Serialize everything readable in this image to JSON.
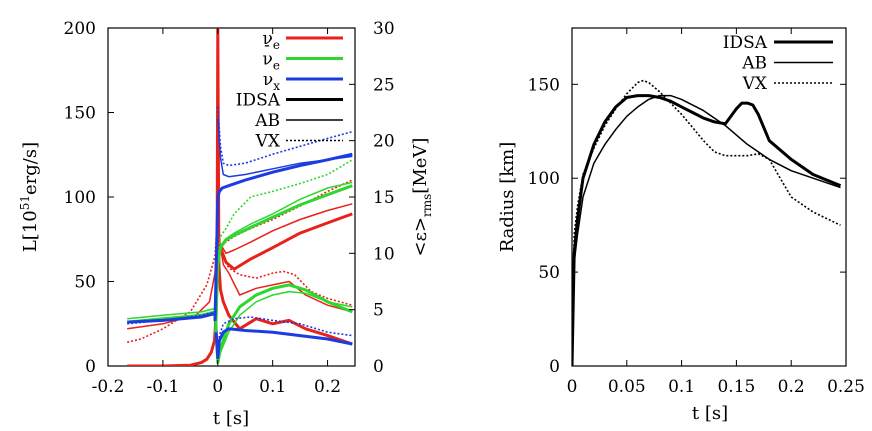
{
  "chart_data": [
    {
      "type": "line",
      "title": "",
      "xlabel": "t [s]",
      "ylabel": "L[10^51 erg/s]",
      "ylabel_display": [
        "L[10",
        "51",
        "erg/s]"
      ],
      "y2label": "<ε>_rms [MeV]",
      "y2label_display": [
        "<ε>",
        "rms",
        "[MeV]"
      ],
      "xlim": [
        -0.2,
        0.25
      ],
      "ylim": [
        0,
        200
      ],
      "y2lim": [
        0,
        30
      ],
      "xticks": [
        -0.2,
        -0.1,
        0,
        0.1,
        0.2
      ],
      "xtick_labels": [
        "-0.2",
        "-0.1",
        "0",
        "0.1",
        "0.2"
      ],
      "yticks": [
        0,
        50,
        100,
        150,
        200
      ],
      "ytick_labels": [
        "0",
        "50",
        "100",
        "150",
        "200"
      ],
      "y2ticks": [
        0,
        5,
        10,
        15,
        20,
        25,
        30
      ],
      "y2tick_labels": [
        "0",
        "5",
        "10",
        "15",
        "20",
        "25",
        "30"
      ],
      "legend_position": "top-right",
      "legend": [
        {
          "label": "ν",
          "sub": "e",
          "accent": "",
          "color": "#e8211a",
          "style": "thick"
        },
        {
          "label": "ν",
          "sub": "e",
          "accent": "-",
          "color": "#2ed62e",
          "style": "thick"
        },
        {
          "label": "ν",
          "sub": "x",
          "accent": "",
          "color": "#1b3ce0",
          "style": "thick"
        },
        {
          "label": "IDSA",
          "color": "#000000",
          "style": "thick"
        },
        {
          "label": "AB",
          "color": "#000000",
          "style": "thin"
        },
        {
          "label": "VX",
          "color": "#000000",
          "style": "dotted"
        }
      ],
      "series": [
        {
          "name": "ν_e luminosity IDSA",
          "axis": "left",
          "color": "#e8211a",
          "style": "thick",
          "x": [
            -0.165,
            -0.1,
            -0.05,
            -0.03,
            -0.02,
            -0.012,
            -0.006,
            -0.003,
            -0.001,
            0.0,
            0.002,
            0.005,
            0.01,
            0.02,
            0.04,
            0.07,
            0.1,
            0.13,
            0.16,
            0.2,
            0.245
          ],
          "y": [
            0,
            0,
            0.5,
            2,
            4,
            8,
            15,
            30,
            80,
            200,
            60,
            45,
            38,
            30,
            22,
            28,
            25,
            27,
            22,
            18,
            13
          ]
        },
        {
          "name": "ν_e luminosity AB",
          "axis": "left",
          "color": "#e8211a",
          "style": "thin",
          "x": [
            -0.165,
            -0.1,
            -0.04,
            -0.015,
            -0.005,
            -0.002,
            0.0,
            0.003,
            0.01,
            0.02,
            0.04,
            0.07,
            0.1,
            0.13,
            0.16,
            0.2,
            0.245
          ],
          "y": [
            22,
            25,
            30,
            38,
            55,
            75,
            110,
            75,
            60,
            55,
            42,
            46,
            48,
            50,
            42,
            36,
            32
          ]
        },
        {
          "name": "ν_e luminosity VX",
          "axis": "left",
          "color": "#e8211a",
          "style": "dotted",
          "x": [
            -0.165,
            -0.14,
            -0.1,
            -0.05,
            -0.02,
            -0.005,
            0.0,
            0.005,
            0.02,
            0.04,
            0.07,
            0.1,
            0.12,
            0.14,
            0.17,
            0.2,
            0.245
          ],
          "y": [
            14,
            16,
            22,
            32,
            48,
            65,
            90,
            68,
            58,
            54,
            52,
            55,
            56,
            54,
            44,
            40,
            36
          ]
        },
        {
          "name": "ν̄_e luminosity IDSA",
          "axis": "left",
          "color": "#2ed62e",
          "style": "thick",
          "x": [
            -0.165,
            -0.1,
            -0.03,
            -0.005,
            0.0,
            0.005,
            0.02,
            0.04,
            0.07,
            0.1,
            0.13,
            0.16,
            0.2,
            0.245
          ],
          "y": [
            26,
            28,
            30,
            32,
            2,
            10,
            25,
            35,
            42,
            46,
            48,
            45,
            38,
            32
          ]
        },
        {
          "name": "ν̄_e luminosity AB",
          "axis": "left",
          "color": "#2ed62e",
          "style": "thin",
          "x": [
            -0.165,
            -0.1,
            -0.03,
            -0.005,
            0.0,
            0.005,
            0.02,
            0.04,
            0.07,
            0.1,
            0.13,
            0.16,
            0.2,
            0.245
          ],
          "y": [
            28,
            30,
            32,
            34,
            2,
            8,
            20,
            30,
            38,
            42,
            44,
            43,
            38,
            35
          ]
        },
        {
          "name": "ν_x luminosity IDSA",
          "axis": "left",
          "color": "#1b3ce0",
          "style": "thick",
          "x": [
            -0.165,
            -0.1,
            -0.03,
            -0.005,
            0.0,
            0.003,
            0.01,
            0.02,
            0.05,
            0.1,
            0.15,
            0.2,
            0.245
          ],
          "y": [
            26,
            27,
            29,
            31,
            5,
            15,
            20,
            22,
            21,
            20,
            18,
            16,
            13
          ]
        },
        {
          "name": "ν_x luminosity VX",
          "axis": "left",
          "color": "#1b3ce0",
          "style": "dotted",
          "x": [
            -0.165,
            -0.1,
            -0.03,
            -0.005,
            0.0,
            0.003,
            0.01,
            0.03,
            0.06,
            0.1,
            0.15,
            0.2,
            0.245
          ],
          "y": [
            25,
            27,
            30,
            32,
            8,
            18,
            25,
            28,
            29,
            27,
            25,
            20,
            18
          ]
        },
        {
          "name": "ν_e rms energy IDSA",
          "axis": "right",
          "color": "#e8211a",
          "style": "thick",
          "x": [
            0.0,
            0.005,
            0.015,
            0.03,
            0.06,
            0.1,
            0.15,
            0.2,
            0.245
          ],
          "y": [
            11,
            10.5,
            9.2,
            8.6,
            9.5,
            10.5,
            11.8,
            12.7,
            13.5
          ]
        },
        {
          "name": "ν_e rms energy AB",
          "axis": "right",
          "color": "#e8211a",
          "style": "thin",
          "x": [
            0.0,
            0.005,
            0.015,
            0.03,
            0.06,
            0.1,
            0.15,
            0.2,
            0.245
          ],
          "y": [
            11,
            10.8,
            10,
            10.3,
            11,
            12,
            13,
            13.8,
            14.4
          ]
        },
        {
          "name": "ν_e rms energy VX",
          "axis": "right",
          "color": "#e8211a",
          "style": "dotted",
          "x": [
            0.0,
            0.005,
            0.015,
            0.03,
            0.06,
            0.1,
            0.15,
            0.2,
            0.245
          ],
          "y": [
            10.5,
            10.7,
            11,
            11.5,
            12.2,
            13,
            14.2,
            15.5,
            16.5
          ]
        },
        {
          "name": "ν̄_e rms energy IDSA",
          "axis": "right",
          "color": "#2ed62e",
          "style": "thick",
          "x": [
            -0.004,
            0.0,
            0.005,
            0.015,
            0.03,
            0.06,
            0.1,
            0.15,
            0.2,
            0.245
          ],
          "y": [
            3,
            9,
            10.5,
            11.2,
            11.6,
            12.3,
            13.2,
            14.3,
            15.2,
            16
          ]
        },
        {
          "name": "ν̄_e rms energy AB",
          "axis": "right",
          "color": "#2ed62e",
          "style": "thin",
          "x": [
            -0.004,
            0.0,
            0.005,
            0.015,
            0.03,
            0.06,
            0.1,
            0.15,
            0.2,
            0.245
          ],
          "y": [
            3,
            9,
            10.7,
            11.3,
            11.8,
            12.6,
            13.5,
            14.8,
            15.8,
            16.3
          ]
        },
        {
          "name": "ν̄_e rms energy VX",
          "axis": "right",
          "color": "#2ed62e",
          "style": "dotted",
          "x": [
            -0.004,
            0.0,
            0.005,
            0.015,
            0.03,
            0.06,
            0.1,
            0.15,
            0.2,
            0.245
          ],
          "y": [
            3,
            9.5,
            11.5,
            12.2,
            13.5,
            15,
            15.5,
            16.2,
            17,
            18.3
          ]
        },
        {
          "name": "ν_x rms energy IDSA",
          "axis": "right",
          "color": "#1b3ce0",
          "style": "thick",
          "x": [
            -0.005,
            0.0,
            0.003,
            0.008,
            0.02,
            0.05,
            0.1,
            0.15,
            0.2,
            0.245
          ],
          "y": [
            4,
            15,
            15.5,
            15.8,
            16,
            16.5,
            17.2,
            17.8,
            18.3,
            18.8
          ]
        },
        {
          "name": "ν_x rms energy AB",
          "axis": "right",
          "color": "#1b3ce0",
          "style": "thin",
          "x": [
            0.0,
            0.005,
            0.01,
            0.02,
            0.05,
            0.1,
            0.15,
            0.2,
            0.245
          ],
          "y": [
            22,
            18.5,
            17,
            16.8,
            17,
            17.5,
            18,
            18.3,
            18.6
          ]
        },
        {
          "name": "ν_x rms energy VX",
          "axis": "right",
          "color": "#1b3ce0",
          "style": "dotted",
          "x": [
            0.0,
            0.005,
            0.01,
            0.02,
            0.05,
            0.1,
            0.15,
            0.2,
            0.245
          ],
          "y": [
            23,
            19.5,
            18,
            17.8,
            18,
            18.8,
            19.5,
            20.2,
            20.8
          ]
        }
      ]
    },
    {
      "type": "line",
      "title": "",
      "xlabel": "t [s]",
      "ylabel": "Radius [km]",
      "xlim": [
        0,
        0.25
      ],
      "ylim": [
        0,
        180
      ],
      "xticks": [
        0,
        0.05,
        0.1,
        0.15,
        0.2,
        0.25
      ],
      "xtick_labels": [
        "0",
        "0.05",
        "0.1",
        "0.15",
        "0.2",
        "0.25"
      ],
      "yticks": [
        0,
        50,
        100,
        150
      ],
      "ytick_labels": [
        "0",
        "50",
        "100",
        "150"
      ],
      "legend_position": "top-right",
      "legend": [
        {
          "label": "IDSA",
          "color": "#000000",
          "style": "thick"
        },
        {
          "label": "AB",
          "color": "#000000",
          "style": "thin"
        },
        {
          "label": "VX",
          "color": "#000000",
          "style": "dotted"
        }
      ],
      "series": [
        {
          "name": "IDSA",
          "color": "#000000",
          "style": "thick",
          "x": [
            0,
            0.002,
            0.005,
            0.01,
            0.02,
            0.03,
            0.04,
            0.05,
            0.06,
            0.07,
            0.08,
            0.09,
            0.1,
            0.11,
            0.12,
            0.13,
            0.14,
            0.15,
            0.155,
            0.16,
            0.165,
            0.17,
            0.18,
            0.2,
            0.22,
            0.245
          ],
          "y": [
            0,
            60,
            78,
            100,
            118,
            130,
            138,
            143,
            144,
            144,
            143,
            141,
            138,
            135,
            132,
            130,
            129,
            137,
            140,
            140,
            139,
            134,
            120,
            110,
            102,
            96
          ]
        },
        {
          "name": "AB",
          "color": "#000000",
          "style": "thin",
          "x": [
            0,
            0.002,
            0.005,
            0.01,
            0.02,
            0.03,
            0.04,
            0.05,
            0.06,
            0.07,
            0.08,
            0.09,
            0.1,
            0.12,
            0.14,
            0.16,
            0.18,
            0.2,
            0.22,
            0.245
          ],
          "y": [
            0,
            55,
            70,
            90,
            108,
            118,
            126,
            133,
            138,
            142,
            144,
            144,
            142,
            136,
            128,
            118,
            110,
            104,
            100,
            95
          ]
        },
        {
          "name": "VX",
          "color": "#000000",
          "style": "dotted",
          "x": [
            0,
            0.002,
            0.005,
            0.01,
            0.02,
            0.03,
            0.04,
            0.05,
            0.06,
            0.065,
            0.07,
            0.08,
            0.09,
            0.1,
            0.11,
            0.12,
            0.13,
            0.14,
            0.15,
            0.16,
            0.17,
            0.18,
            0.19,
            0.2,
            0.22,
            0.245
          ],
          "y": [
            0,
            70,
            85,
            102,
            116,
            128,
            137,
            145,
            151,
            152,
            151,
            146,
            140,
            134,
            127,
            120,
            114,
            112,
            112,
            112,
            113,
            110,
            100,
            90,
            82,
            75
          ]
        }
      ]
    }
  ]
}
